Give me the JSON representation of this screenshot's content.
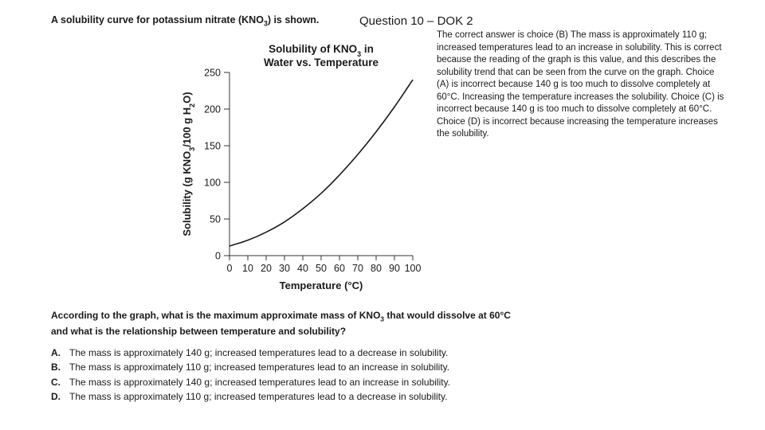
{
  "slide_title": "Question 10 – DOK 2",
  "intro": {
    "before": "A solubility curve for potassium nitrate (KNO",
    "sub": "3",
    "after": ") is shown."
  },
  "explanation": "The correct answer is choice (B) The mass is approximately 110 g; increased temperatures lead to an increase in solubility. This is correct because the reading of the graph is this value, and this describes the solubility trend that can be seen from the curve on the graph. Choice (A) is incorrect because 140 g is too much to dissolve completely at 60°C. Increasing the temperature increases the solubility. Choice (C) is incorrect because 140 g is too much to dissolve completely at 60°C. Choice (D) is incorrect because increasing the temperature increases the solubility.",
  "question": {
    "line1_before": "According to the graph, what is the maximum approximate mass of KNO",
    "line1_sub": "3",
    "line1_after": " that would dissolve at 60°C",
    "line2": "and what is the relationship between temperature and solubility?"
  },
  "choices": [
    {
      "letter": "A.",
      "text": "The mass is approximately 140 g; increased temperatures lead to a decrease in solubility."
    },
    {
      "letter": "B.",
      "text": "The mass is approximately 110 g; increased temperatures lead to an increase in solubility."
    },
    {
      "letter": "C.",
      "text": "The mass is approximately 140 g; increased temperatures lead to an increase in solubility."
    },
    {
      "letter": "D.",
      "text": "The mass is approximately 110 g; increased temperatures lead to a decrease in solubility."
    }
  ],
  "chart_data": {
    "type": "line",
    "title_line1_before": "Solubility of KNO",
    "title_sub": "3",
    "title_line1_after": " in",
    "title_line2": "Water vs. Temperature",
    "xlabel": "Temperature (°C)",
    "ylabel_parts": [
      "Solubility (g KNO",
      "3",
      "/100 g H",
      "2",
      "O)"
    ],
    "xlim": [
      0,
      100
    ],
    "ylim": [
      0,
      250
    ],
    "xticks": [
      0,
      10,
      20,
      30,
      40,
      50,
      60,
      70,
      80,
      90,
      100
    ],
    "yticks": [
      0,
      50,
      100,
      150,
      200,
      250
    ],
    "series": [
      {
        "name": "KNO3",
        "x": [
          0,
          10,
          20,
          30,
          40,
          50,
          60,
          70,
          80,
          90,
          100
        ],
        "y": [
          13,
          21,
          32,
          46,
          64,
          85,
          110,
          138,
          169,
          203,
          240
        ]
      }
    ]
  }
}
